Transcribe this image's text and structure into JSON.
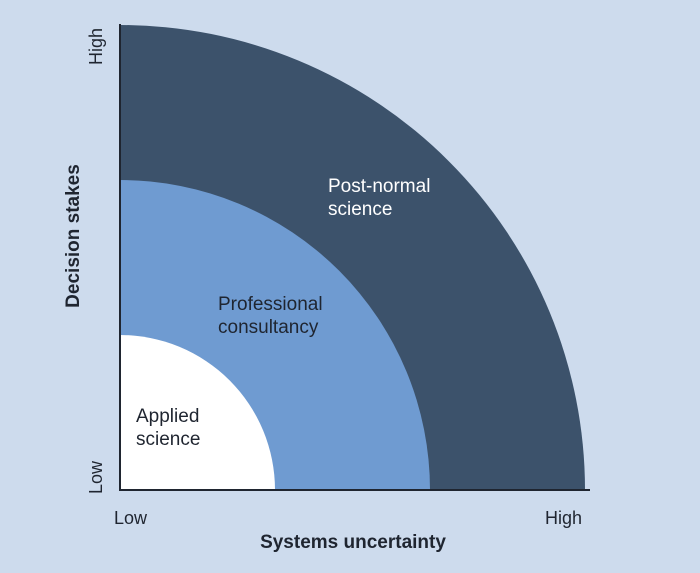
{
  "axes": {
    "x_title": "Systems uncertainty",
    "y_title": "Decision stakes",
    "x_low": "Low",
    "x_high": "High",
    "y_low": "Low",
    "y_high": "High"
  },
  "regions": [
    {
      "id": "applied",
      "lines": [
        "Applied",
        "science"
      ],
      "color": "#ffffff",
      "text_color": "#1f2530"
    },
    {
      "id": "professional",
      "lines": [
        "Professional",
        "consultancy"
      ],
      "color": "#6f9bd1",
      "text_color": "#1f2530"
    },
    {
      "id": "post-normal",
      "lines": [
        "Post-normal",
        "science"
      ],
      "color": "#3c526b",
      "text_color": "#ffffff"
    }
  ],
  "colors": {
    "background": "#cddbed",
    "axis_line": "#1f2530"
  }
}
